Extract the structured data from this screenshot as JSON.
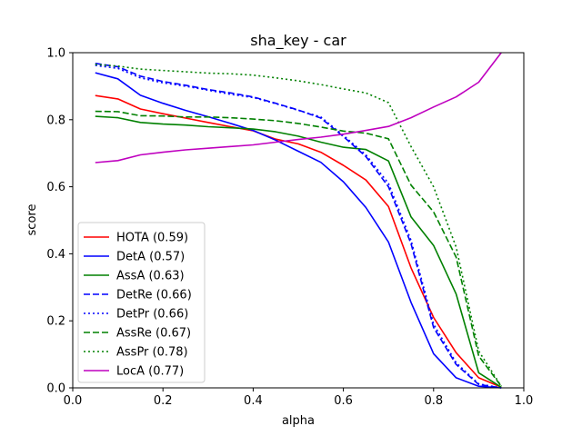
{
  "chart_data": {
    "type": "line",
    "title": "sha_key - car",
    "xlabel": "alpha",
    "ylabel": "score",
    "xlim": [
      0.0,
      1.0
    ],
    "ylim": [
      0.0,
      1.0
    ],
    "xticks": [
      "0.0",
      "0.2",
      "0.4",
      "0.6",
      "0.8",
      "1.0"
    ],
    "yticks": [
      "0.0",
      "0.2",
      "0.4",
      "0.6",
      "0.8",
      "1.0"
    ],
    "grid": false,
    "legend_position": "lower-left",
    "x": [
      0.05,
      0.1,
      0.15,
      0.2,
      0.25,
      0.3,
      0.35,
      0.4,
      0.45,
      0.5,
      0.55,
      0.6,
      0.65,
      0.7,
      0.75,
      0.8,
      0.85,
      0.9,
      0.95
    ],
    "series": [
      {
        "name": "HOTA (0.59)",
        "color": "#ff0000",
        "dash": "solid",
        "values": [
          0.872,
          0.862,
          0.832,
          0.818,
          0.805,
          0.792,
          0.779,
          0.767,
          0.742,
          0.728,
          0.703,
          0.664,
          0.62,
          0.541,
          0.358,
          0.21,
          0.105,
          0.03,
          0.002
        ]
      },
      {
        "name": "DetA (0.57)",
        "color": "#0000ff",
        "dash": "solid",
        "values": [
          0.94,
          0.922,
          0.873,
          0.849,
          0.828,
          0.809,
          0.789,
          0.768,
          0.739,
          0.706,
          0.673,
          0.615,
          0.538,
          0.435,
          0.255,
          0.102,
          0.03,
          0.005,
          0.0
        ]
      },
      {
        "name": "AssA (0.63)",
        "color": "#008000",
        "dash": "solid",
        "values": [
          0.81,
          0.806,
          0.792,
          0.787,
          0.784,
          0.779,
          0.776,
          0.772,
          0.764,
          0.751,
          0.733,
          0.718,
          0.711,
          0.677,
          0.51,
          0.425,
          0.28,
          0.045,
          0.002
        ]
      },
      {
        "name": "DetRe (0.66)",
        "color": "#0000ff",
        "dash": "dashed",
        "values": [
          0.968,
          0.958,
          0.93,
          0.914,
          0.903,
          0.89,
          0.88,
          0.868,
          0.849,
          0.829,
          0.805,
          0.75,
          0.69,
          0.6,
          0.43,
          0.18,
          0.07,
          0.01,
          0.0
        ]
      },
      {
        "name": "DetPr (0.66)",
        "color": "#0000ff",
        "dash": "dotted",
        "values": [
          0.962,
          0.953,
          0.925,
          0.91,
          0.9,
          0.888,
          0.876,
          0.866,
          0.848,
          0.828,
          0.808,
          0.753,
          0.695,
          0.61,
          0.44,
          0.19,
          0.075,
          0.012,
          0.0
        ]
      },
      {
        "name": "AssRe (0.67)",
        "color": "#008000",
        "dash": "dashed",
        "values": [
          0.825,
          0.824,
          0.812,
          0.811,
          0.808,
          0.808,
          0.806,
          0.802,
          0.797,
          0.789,
          0.778,
          0.766,
          0.76,
          0.743,
          0.605,
          0.525,
          0.39,
          0.095,
          0.005
        ]
      },
      {
        "name": "AssPr (0.78)",
        "color": "#008000",
        "dash": "dotted",
        "values": [
          0.965,
          0.96,
          0.951,
          0.947,
          0.943,
          0.939,
          0.937,
          0.933,
          0.925,
          0.916,
          0.905,
          0.892,
          0.88,
          0.851,
          0.72,
          0.6,
          0.42,
          0.11,
          0.005
        ]
      },
      {
        "name": "LocA (0.77)",
        "color": "#bf00bf",
        "dash": "solid",
        "values": [
          0.672,
          0.678,
          0.695,
          0.703,
          0.71,
          0.715,
          0.72,
          0.725,
          0.733,
          0.741,
          0.748,
          0.757,
          0.768,
          0.78,
          0.806,
          0.838,
          0.868,
          0.912,
          1.0
        ]
      }
    ]
  }
}
